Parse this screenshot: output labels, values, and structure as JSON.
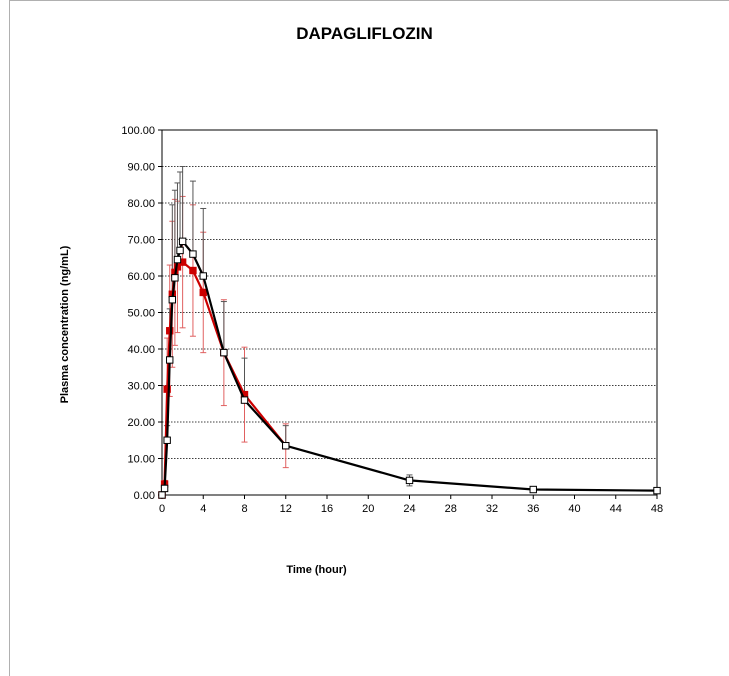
{
  "chart_data": {
    "type": "line",
    "title": "DAPAGLIFLOZIN",
    "xlabel": "Time (hour)",
    "ylabel": "Plasma concentration (ng/mL)",
    "xlim": [
      0,
      48
    ],
    "ylim": [
      0,
      100
    ],
    "xticks": [
      0,
      4,
      8,
      12,
      16,
      20,
      24,
      28,
      32,
      36,
      40,
      44,
      48
    ],
    "yticks": [
      "0.00",
      "10.00",
      "20.00",
      "30.00",
      "40.00",
      "50.00",
      "60.00",
      "70.00",
      "80.00",
      "90.00",
      "100.00"
    ],
    "grid": "horizontal dotted",
    "legend": "none",
    "series": [
      {
        "color": "#cc0000",
        "marker": "filled-square",
        "errorbar_color": "#e06060",
        "x": [
          0,
          0.25,
          0.5,
          0.75,
          1,
          1.25,
          1.5,
          2,
          3,
          4,
          6,
          8,
          12
        ],
        "y": [
          0.0,
          3.0,
          29.0,
          45.0,
          55.0,
          61.0,
          62.5,
          63.8,
          61.5,
          55.5,
          39.0,
          27.5,
          13.5
        ],
        "err_low": [
          0.0,
          1.0,
          14.0,
          18.0,
          20.0,
          20.0,
          18.0,
          18.0,
          18.0,
          16.5,
          14.5,
          13.0,
          6.0
        ],
        "err_high": [
          0.0,
          1.0,
          14.0,
          18.0,
          20.0,
          20.0,
          18.0,
          18.0,
          18.0,
          16.5,
          14.5,
          13.0,
          6.0
        ]
      },
      {
        "color": "#000000",
        "marker": "open-square",
        "errorbar_color": "#555555",
        "x": [
          0,
          0.25,
          0.5,
          0.75,
          1,
          1.25,
          1.5,
          1.75,
          2,
          3,
          4,
          6,
          8,
          12,
          24,
          36,
          48
        ],
        "y": [
          0.0,
          1.8,
          15.0,
          37.0,
          53.5,
          59.5,
          64.5,
          67.0,
          69.5,
          66.0,
          60.0,
          39.0,
          26.0,
          13.5,
          4.0,
          1.5,
          1.2
        ],
        "err_low": [
          0.0,
          0.0,
          0.0,
          0.0,
          0.0,
          0.0,
          0.0,
          0.0,
          0.0,
          0.0,
          0.0,
          0.0,
          0.0,
          0.0,
          1.5,
          0.0,
          0.0
        ],
        "err_high": [
          0.0,
          0.5,
          4.0,
          14.0,
          26.0,
          24.0,
          21.0,
          21.5,
          20.5,
          20.0,
          18.5,
          14.0,
          11.5,
          5.5,
          1.5,
          0.0,
          0.0
        ]
      }
    ]
  }
}
